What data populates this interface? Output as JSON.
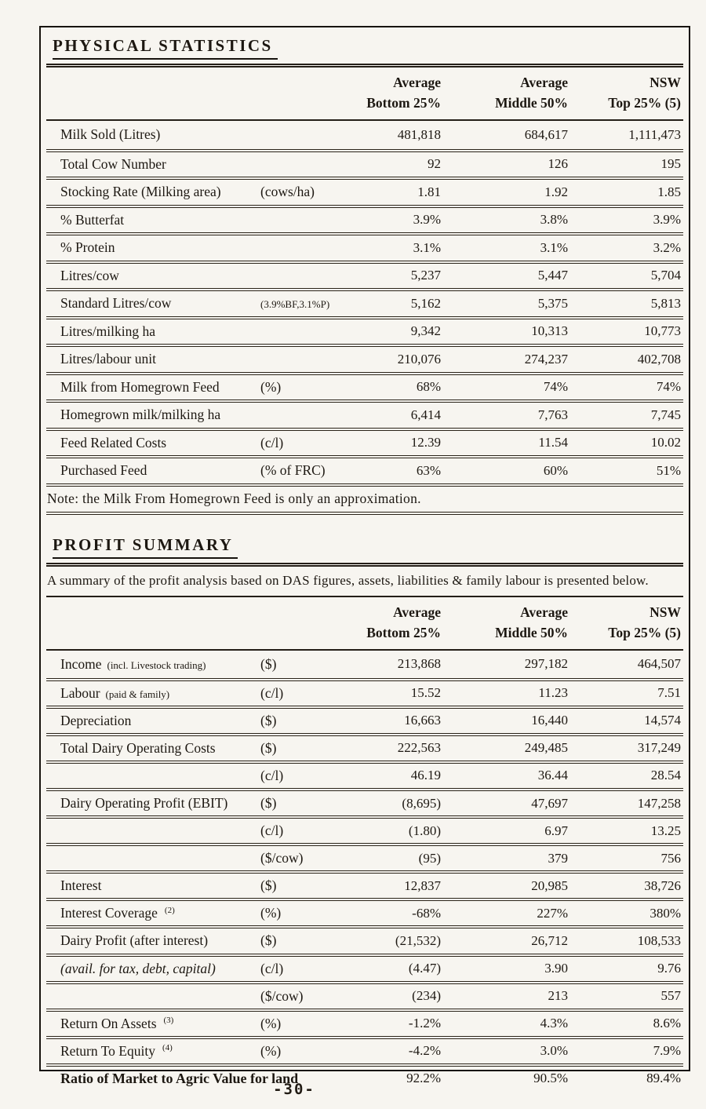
{
  "page": {
    "footer": "-30-"
  },
  "colors": {
    "ink": "#1d1812",
    "paper": "#f7f5f0",
    "line": "#241e17"
  },
  "physical": {
    "title": "PHYSICAL STATISTICS",
    "col_headers": [
      {
        "l1": "Average",
        "l2": "Bottom 25%"
      },
      {
        "l1": "Average",
        "l2": "Middle 50%"
      },
      {
        "l1": "NSW",
        "l2": "Top 25% (5)"
      }
    ],
    "rows": [
      {
        "label": "Milk Sold (Litres)",
        "label_small": "",
        "sup": "",
        "unit": "",
        "cls": "",
        "v1": "481,818",
        "v2": "684,617",
        "v3": "1,111,473"
      },
      {
        "label": "Total Cow Number",
        "label_small": "",
        "sup": "",
        "unit": "",
        "cls": "",
        "v1": "92",
        "v2": "126",
        "v3": "195"
      },
      {
        "label": "Stocking Rate (Milking area)",
        "label_small": "",
        "sup": "",
        "unit": "(cows/ha)",
        "cls": "",
        "v1": "1.81",
        "v2": "1.92",
        "v3": "1.85"
      },
      {
        "label": "% Butterfat",
        "label_small": "",
        "sup": "",
        "unit": "",
        "cls": "",
        "v1": "3.9%",
        "v2": "3.8%",
        "v3": "3.9%"
      },
      {
        "label": "% Protein",
        "label_small": "",
        "sup": "",
        "unit": "",
        "cls": "",
        "v1": "3.1%",
        "v2": "3.1%",
        "v3": "3.2%"
      },
      {
        "label": "Litres/cow",
        "label_small": "",
        "sup": "",
        "unit": "",
        "cls": "",
        "v1": "5,237",
        "v2": "5,447",
        "v3": "5,704"
      },
      {
        "label": "Standard Litres/cow",
        "label_small": "",
        "sup": "",
        "unit": "(3.9%BF,3.1%P)",
        "cls": "unit-sm",
        "v1": "5,162",
        "v2": "5,375",
        "v3": "5,813"
      },
      {
        "label": "Litres/milking ha",
        "label_small": "",
        "sup": "",
        "unit": "",
        "cls": "",
        "v1": "9,342",
        "v2": "10,313",
        "v3": "10,773"
      },
      {
        "label": "Litres/labour unit",
        "label_small": "",
        "sup": "",
        "unit": "",
        "cls": "",
        "v1": "210,076",
        "v2": "274,237",
        "v3": "402,708"
      },
      {
        "label": "Milk from Homegrown Feed",
        "label_small": "",
        "sup": "",
        "unit": "(%)",
        "cls": "",
        "v1": "68%",
        "v2": "74%",
        "v3": "74%"
      },
      {
        "label": "Homegrown milk/milking ha",
        "label_small": "",
        "sup": "",
        "unit": "",
        "cls": "",
        "v1": "6,414",
        "v2": "7,763",
        "v3": "7,745"
      },
      {
        "label": "Feed Related Costs",
        "label_small": "",
        "sup": "",
        "unit": "(c/l)",
        "cls": "",
        "v1": "12.39",
        "v2": "11.54",
        "v3": "10.02"
      },
      {
        "label": "Purchased Feed",
        "label_small": "",
        "sup": "",
        "unit": "(% of FRC)",
        "cls": "",
        "v1": "63%",
        "v2": "60%",
        "v3": "51%"
      }
    ],
    "note": "Note: the Milk From Homegrown Feed is only an approximation."
  },
  "profit": {
    "title": "PROFIT SUMMARY",
    "intro": "A summary of the profit analysis based on DAS figures, assets, liabilities & family labour is presented below.",
    "col_headers": [
      {
        "l1": "Average",
        "l2": "Bottom 25%"
      },
      {
        "l1": "Average",
        "l2": "Middle 50%"
      },
      {
        "l1": "NSW",
        "l2": "Top 25% (5)"
      }
    ],
    "rows": [
      {
        "label": "Income",
        "label_small": "(incl. Livestock trading)",
        "sup": "",
        "unit": "($)",
        "cls": "",
        "v1": "213,868",
        "v2": "297,182",
        "v3": "464,507"
      },
      {
        "label": "Labour",
        "label_small": "(paid & family)",
        "sup": "",
        "unit": "(c/l)",
        "cls": "",
        "v1": "15.52",
        "v2": "11.23",
        "v3": "7.51"
      },
      {
        "label": "Depreciation",
        "label_small": "",
        "sup": "",
        "unit": "($)",
        "cls": "",
        "v1": "16,663",
        "v2": "16,440",
        "v3": "14,574"
      },
      {
        "label": "Total Dairy Operating Costs",
        "label_small": "",
        "sup": "",
        "unit": "($)",
        "cls": "",
        "v1": "222,563",
        "v2": "249,485",
        "v3": "317,249"
      },
      {
        "label": "",
        "label_small": "",
        "sup": "",
        "unit": "(c/l)",
        "cls": "",
        "v1": "46.19",
        "v2": "36.44",
        "v3": "28.54"
      },
      {
        "label": "Dairy Operating Profit (EBIT)",
        "label_small": "",
        "sup": "",
        "unit": "($)",
        "cls": "",
        "v1": "(8,695)",
        "v2": "47,697",
        "v3": "147,258"
      },
      {
        "label": "",
        "label_small": "",
        "sup": "",
        "unit": "(c/l)",
        "cls": "",
        "v1": "(1.80)",
        "v2": "6.97",
        "v3": "13.25"
      },
      {
        "label": "",
        "label_small": "",
        "sup": "",
        "unit": "($/cow)",
        "cls": "",
        "v1": "(95)",
        "v2": "379",
        "v3": "756"
      },
      {
        "label": "Interest",
        "label_small": "",
        "sup": "",
        "unit": "($)",
        "cls": "",
        "v1": "12,837",
        "v2": "20,985",
        "v3": "38,726"
      },
      {
        "label": "Interest Coverage",
        "label_small": "",
        "sup": "(2)",
        "unit": "(%)",
        "cls": "",
        "v1": "-68%",
        "v2": "227%",
        "v3": "380%"
      },
      {
        "label": "Dairy Profit (after interest)",
        "label_small": "",
        "sup": "",
        "unit": "($)",
        "cls": "",
        "v1": "(21,532)",
        "v2": "26,712",
        "v3": "108,533"
      },
      {
        "label": "(avail. for tax, debt, capital)",
        "label_small": "",
        "sup": "",
        "unit": "(c/l)",
        "cls": "italic",
        "v1": "(4.47)",
        "v2": "3.90",
        "v3": "9.76"
      },
      {
        "label": "",
        "label_small": "",
        "sup": "",
        "unit": "($/cow)",
        "cls": "",
        "v1": "(234)",
        "v2": "213",
        "v3": "557"
      },
      {
        "label": "Return On Assets",
        "label_small": "",
        "sup": "(3)",
        "unit": "(%)",
        "cls": "",
        "v1": "-1.2%",
        "v2": "4.3%",
        "v3": "8.6%"
      },
      {
        "label": "Return To Equity",
        "label_small": "",
        "sup": "(4)",
        "unit": "(%)",
        "cls": "",
        "v1": "-4.2%",
        "v2": "3.0%",
        "v3": "7.9%"
      },
      {
        "label": "Ratio of Market to Agric Value for land",
        "label_small": "",
        "sup": "",
        "unit": "",
        "cls": "bold",
        "v1": "92.2%",
        "v2": "90.5%",
        "v3": "89.4%"
      }
    ]
  }
}
